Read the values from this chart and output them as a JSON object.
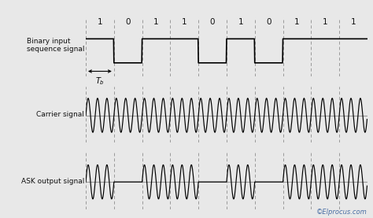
{
  "bit_sequence": [
    1,
    0,
    1,
    1,
    0,
    1,
    0,
    1,
    1,
    1
  ],
  "num_bits": 10,
  "samples_per_bit": 80,
  "carrier_freq_cycles_per_bit": 3,
  "background_color": "#e8e8e8",
  "signal_color": "#000000",
  "dashed_color": "#999999",
  "axis_line_color": "#999999",
  "label_color": "#111111",
  "labels": {
    "binary": "Binary input\nsequence signal",
    "carrier": "Carrier signal",
    "ask": "ASK output signal",
    "watermark": "©Elprocus.com"
  },
  "fig_width": 4.74,
  "fig_height": 2.77,
  "dpi": 100
}
